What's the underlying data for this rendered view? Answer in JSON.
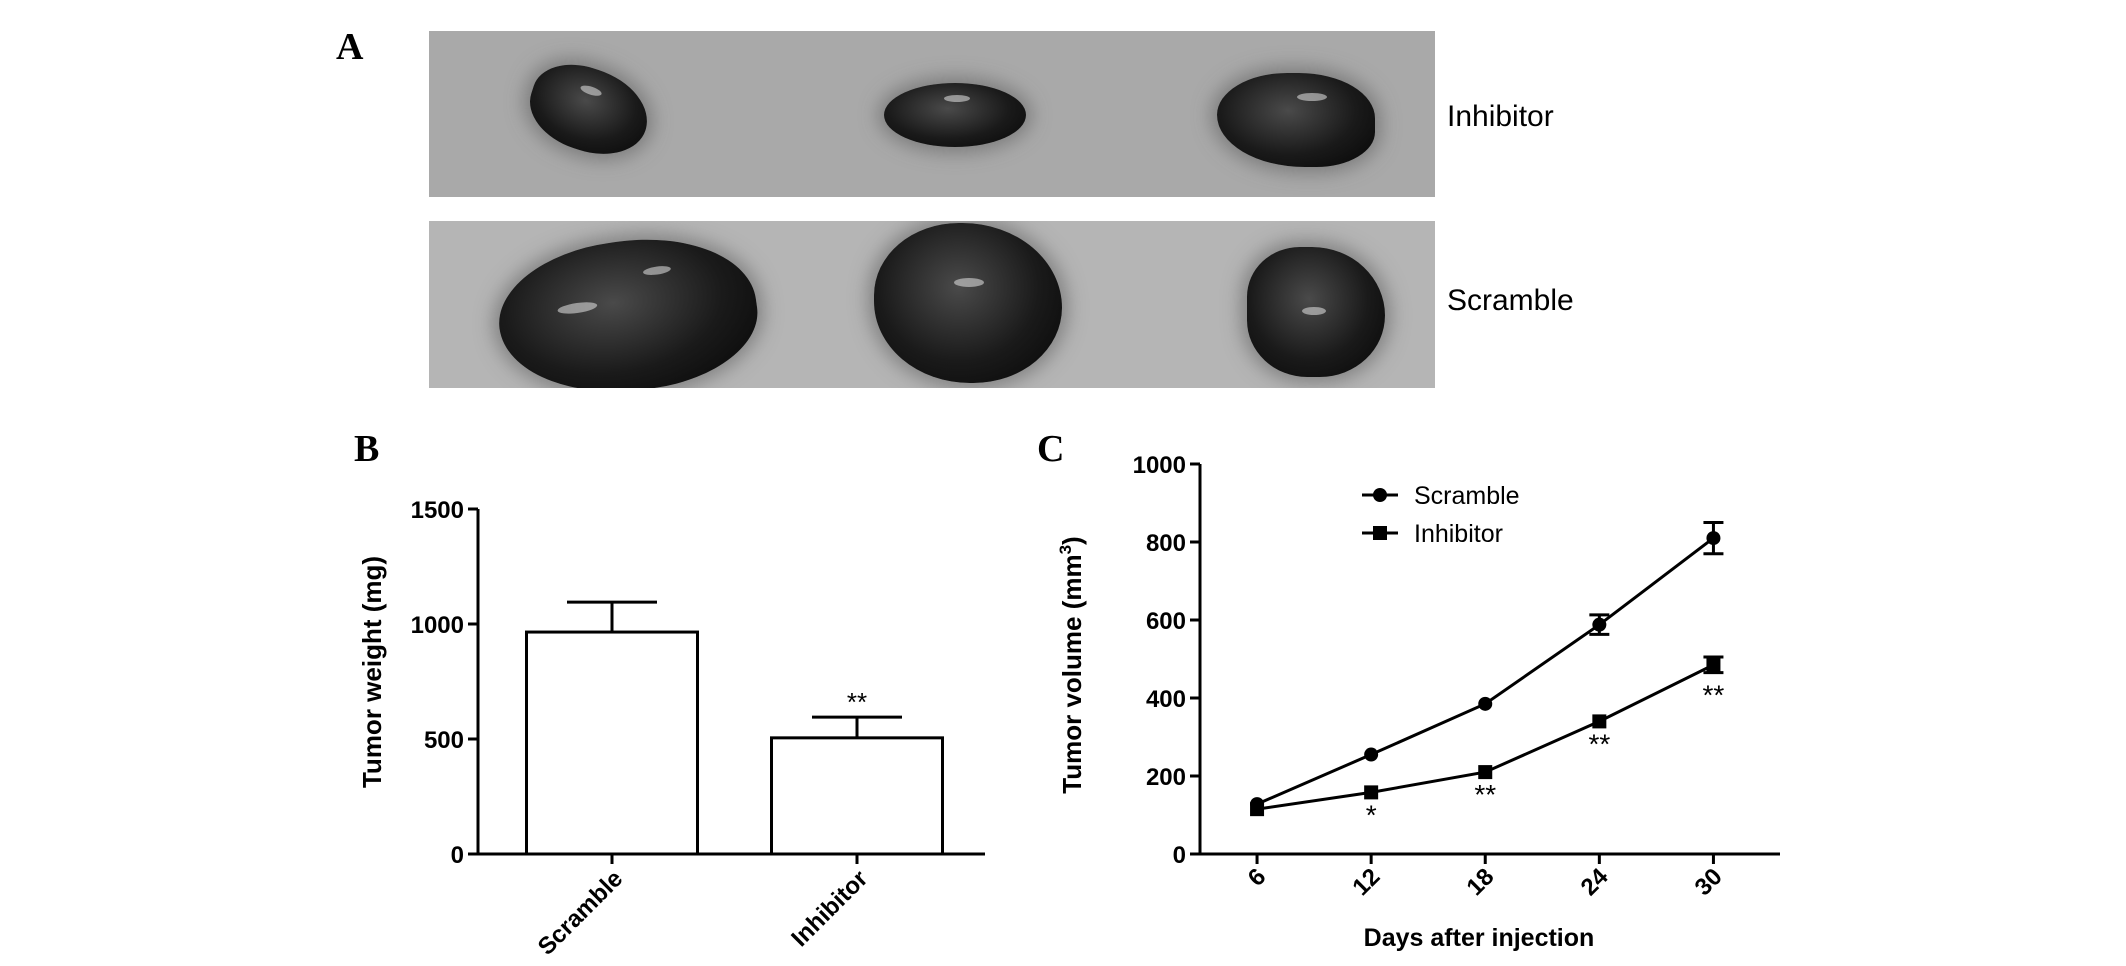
{
  "panels": {
    "a": "A",
    "b": "B",
    "c": "C"
  },
  "photo_labels": {
    "top": "Inhibitor",
    "bottom": "Scramble"
  },
  "chart_data": [
    {
      "type": "bar",
      "panel": "B",
      "categories": [
        "Scramble",
        "Inhibitor"
      ],
      "values": [
        965,
        505
      ],
      "errors": [
        130,
        90
      ],
      "significance": [
        "",
        "**"
      ],
      "ylabel": "Tumor weight (mg)",
      "xlabel": "",
      "ylim": [
        0,
        1500
      ],
      "yticks": [
        "0",
        "500",
        "1000",
        "1500"
      ],
      "bar_fill": "#ffffff",
      "grid": false
    },
    {
      "type": "line",
      "panel": "C",
      "x": [
        6,
        12,
        18,
        24,
        30
      ],
      "xticks": [
        "6",
        "12",
        "18",
        "24",
        "30"
      ],
      "series": [
        {
          "name": "Scramble",
          "marker": "circle",
          "values": [
            128,
            255,
            385,
            588,
            810
          ],
          "errors": [
            0,
            0,
            0,
            25,
            40
          ]
        },
        {
          "name": "Inhibitor",
          "marker": "square",
          "values": [
            115,
            158,
            210,
            340,
            485
          ],
          "errors": [
            0,
            0,
            0,
            0,
            20
          ]
        }
      ],
      "significance": [
        "",
        "*",
        "**",
        "**",
        "**"
      ],
      "xlabel": "Days after injection",
      "ylabel_main": "Tumor volume (mm",
      "ylabel_sup": "3",
      "ylabel_close": ")",
      "ylim": [
        0,
        1000
      ],
      "yticks": [
        "0",
        "200",
        "400",
        "600",
        "800",
        "1000"
      ],
      "legend_position": "top-left",
      "grid": false
    }
  ]
}
